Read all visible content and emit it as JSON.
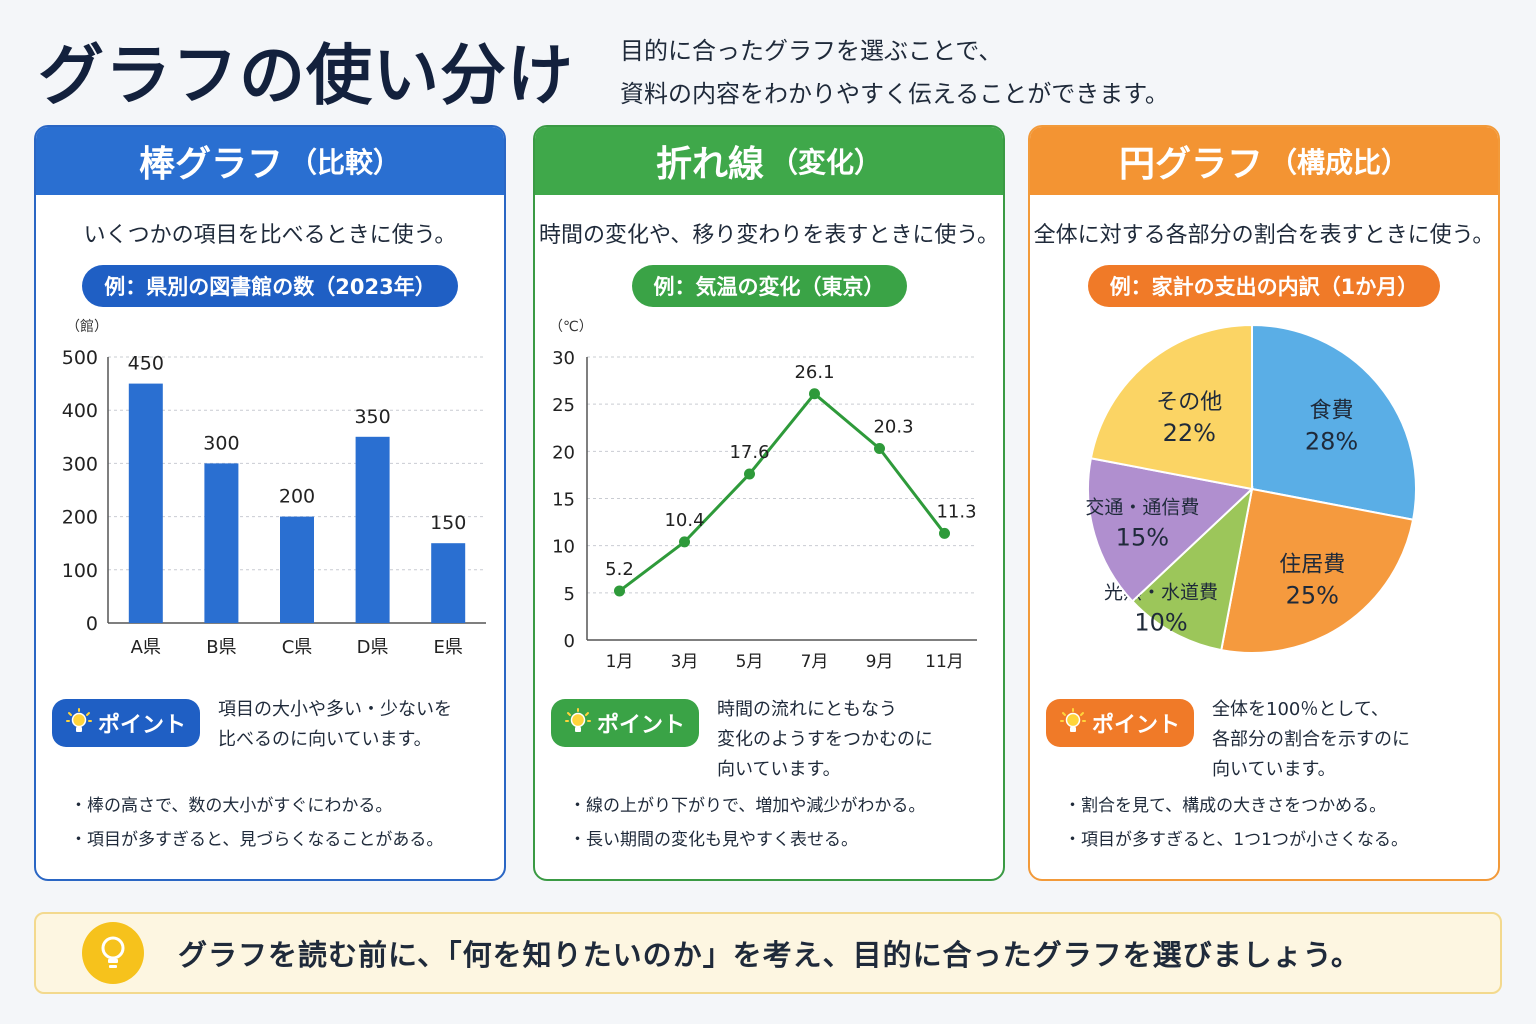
{
  "page": {
    "title": "グラフの使い分け",
    "intro": [
      "目的に合ったグラフを選ぶことで、",
      "資料の内容をわかりやすく伝えることができます。"
    ]
  },
  "cards": [
    {
      "heading": "棒グラフ",
      "heading_sub": "（比較）",
      "description": "いくつかの項目を比べるときに使う。",
      "example": "例：県別の図書館の数（2023年）",
      "point_label": "ポイント",
      "point_text": [
        "項目の大小や多い・少ないを",
        "比べるのに向いています。"
      ],
      "bullets": [
        "棒の高さで、数の大小がすぐにわかる。",
        "項目が多すぎると、見づらくなることがある。"
      ],
      "accent": "#2a6fd1"
    },
    {
      "heading": "折れ線",
      "heading_sub": "（変化）",
      "description": "時間の変化や、移り変わりを表すときに使う。",
      "example": "例：気温の変化（東京）",
      "point_label": "ポイント",
      "point_text": [
        "時間の流れにともなう",
        "変化のようすをつかむのに",
        "向いています。"
      ],
      "bullets": [
        "線の上がり下がりで、増加や減少がわかる。",
        "長い期間の変化も見やすく表せる。"
      ],
      "accent": "#3fa84a"
    },
    {
      "heading": "円グラフ",
      "heading_sub": "（構成比）",
      "description": "全体に対する各部分の割合を表すときに使う。",
      "example": "例：家計の支出の内訳（1か月）",
      "point_label": "ポイント",
      "point_text": [
        "全体を100％として、",
        "各部分の割合を示すのに",
        "向いています。"
      ],
      "bullets": [
        "割合を見て、構成の大きさをつかめる。",
        "項目が多すぎると、1つ1つが小さくなる。"
      ],
      "accent": "#f39433"
    }
  ],
  "footer": {
    "text": "グラフを読む前に、「何を知りたいのか」を考え、目的に合ったグラフを選びましょう。"
  },
  "chart_data": [
    {
      "type": "bar",
      "unit_label": "（館）",
      "categories": [
        "A県",
        "B県",
        "C県",
        "D県",
        "E県"
      ],
      "values": [
        450,
        300,
        200,
        350,
        150
      ],
      "ylim": [
        0,
        500
      ],
      "yticks": [
        0,
        100,
        200,
        300,
        400,
        500
      ],
      "grid": true,
      "color": "#2a6fd1"
    },
    {
      "type": "line",
      "unit_label": "（℃）",
      "categories": [
        "1月",
        "3月",
        "5月",
        "7月",
        "9月",
        "11月"
      ],
      "values": [
        5.2,
        10.4,
        17.6,
        26.1,
        20.3,
        11.3
      ],
      "ylim": [
        0,
        30
      ],
      "yticks": [
        0,
        5,
        10,
        15,
        20,
        25,
        30
      ],
      "grid": true,
      "color": "#2e9a3a"
    },
    {
      "type": "pie",
      "slices": [
        {
          "label": "食費",
          "value": 28,
          "display": "28%",
          "color": "#5aaee6"
        },
        {
          "label": "住居費",
          "value": 25,
          "display": "25%",
          "color": "#f59a3e"
        },
        {
          "label": "光熱・水道費",
          "value": 10,
          "display": "10%",
          "color": "#9cc65a"
        },
        {
          "label": "交通・通信費",
          "value": 15,
          "display": "15%",
          "color": "#b08fcf"
        },
        {
          "label": "その他",
          "value": 22,
          "display": "22%",
          "color": "#fbd464"
        }
      ]
    }
  ]
}
